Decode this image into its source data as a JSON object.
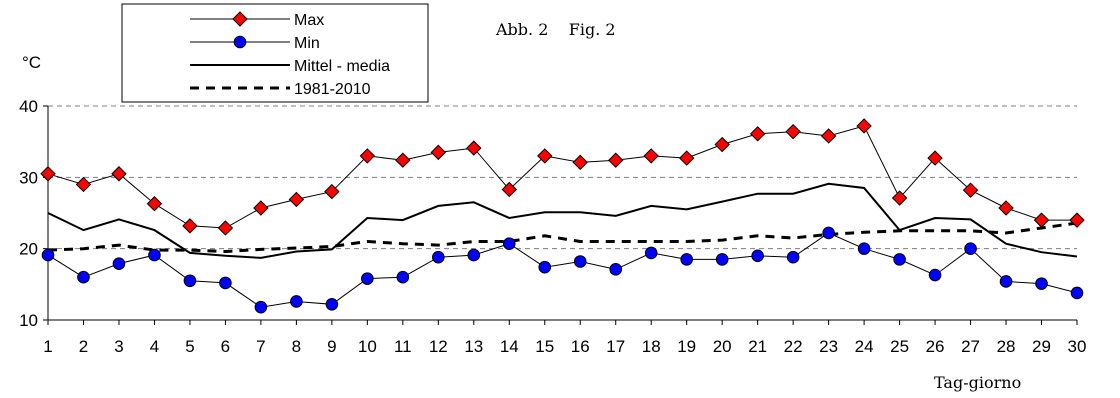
{
  "chart_data": {
    "type": "line",
    "title": "Abb. 2    Fig. 2",
    "ylabel": "°C",
    "xlabel": "Tag-giorno",
    "ylim": [
      10,
      40
    ],
    "yticks": [
      10,
      20,
      30,
      40
    ],
    "grid": "horizontal dashed at 20, 30, 40",
    "legend_position": "top-left",
    "x": [
      1,
      2,
      3,
      4,
      5,
      6,
      7,
      8,
      9,
      10,
      11,
      12,
      13,
      14,
      15,
      16,
      17,
      18,
      19,
      20,
      21,
      22,
      23,
      24,
      25,
      26,
      27,
      28,
      29,
      30
    ],
    "series": [
      {
        "name": "Max",
        "color": "#ff0000",
        "marker": "diamond",
        "values": [
          30.5,
          29.0,
          30.5,
          26.3,
          23.2,
          22.9,
          25.7,
          26.9,
          28.0,
          33.0,
          32.4,
          33.5,
          34.1,
          28.3,
          33.0,
          32.1,
          32.4,
          33.0,
          32.7,
          34.6,
          36.1,
          36.4,
          35.8,
          37.2,
          27.1,
          32.7,
          28.2,
          25.7,
          24.0,
          24.0
        ]
      },
      {
        "name": "Min",
        "color": "#0000ff",
        "marker": "circle",
        "values": [
          19.1,
          16.0,
          17.9,
          19.1,
          15.5,
          15.2,
          11.8,
          12.6,
          12.2,
          15.8,
          16.0,
          18.8,
          19.1,
          20.7,
          17.4,
          18.2,
          17.1,
          19.4,
          18.5,
          18.5,
          19.0,
          18.8,
          22.2,
          20.0,
          18.5,
          16.3,
          20.0,
          15.4,
          15.1,
          13.8
        ]
      },
      {
        "name": "Mittel - media",
        "color": "#000000",
        "marker": "none",
        "values": [
          25.0,
          22.6,
          24.1,
          22.6,
          19.4,
          19.0,
          18.7,
          19.6,
          19.9,
          24.3,
          24.0,
          26.0,
          26.5,
          24.3,
          25.1,
          25.1,
          24.6,
          26.0,
          25.5,
          26.6,
          27.7,
          27.7,
          29.1,
          28.5,
          22.6,
          24.3,
          24.1,
          20.7,
          19.5,
          18.9
        ]
      },
      {
        "name": "1981-2010",
        "color": "#000000",
        "marker": "none",
        "dashed": true,
        "values": [
          19.8,
          20.0,
          20.5,
          19.8,
          19.8,
          19.6,
          19.9,
          20.1,
          20.3,
          21.0,
          20.7,
          20.5,
          21.0,
          21.0,
          21.8,
          21.0,
          21.0,
          21.0,
          21.0,
          21.2,
          21.8,
          21.5,
          22.0,
          22.3,
          22.5,
          22.5,
          22.5,
          22.2,
          22.9,
          23.6
        ]
      }
    ]
  }
}
